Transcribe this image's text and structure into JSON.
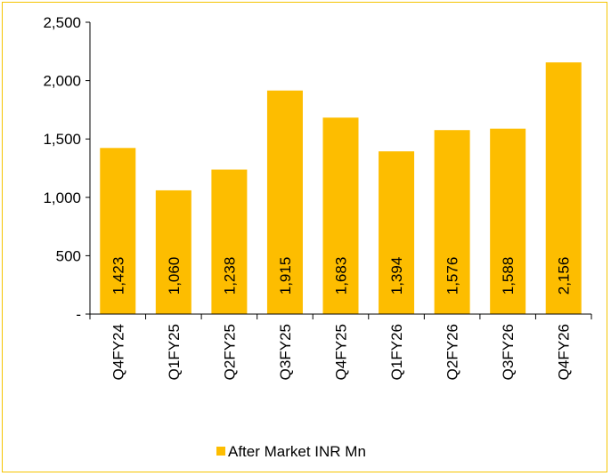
{
  "chart_data": {
    "type": "bar",
    "categories": [
      "Q4FY24",
      "Q1FY25",
      "Q2FY25",
      "Q3FY25",
      "Q4FY25",
      "Q1FY26",
      "Q2FY26",
      "Q3FY26",
      "Q4FY26"
    ],
    "series": [
      {
        "name": "After Market INR Mn",
        "values": [
          1423,
          1060,
          1238,
          1915,
          1683,
          1394,
          1576,
          1588,
          2156
        ],
        "data_labels": [
          "1,423",
          "1,060",
          "1,238",
          "1,915",
          "1,683",
          "1,394",
          "1,576",
          "1,588",
          "2,156"
        ]
      }
    ],
    "ylim": [
      0,
      2500
    ],
    "yticks": [
      0,
      500,
      1000,
      1500,
      2000,
      2500
    ],
    "ytick_labels": [
      "-",
      "500",
      "1,000",
      "1,500",
      "2,000",
      "2,500"
    ],
    "grid": false,
    "legend_position": "bottom",
    "bar_color": "#FDBD00",
    "border_color": "#F5C400"
  }
}
